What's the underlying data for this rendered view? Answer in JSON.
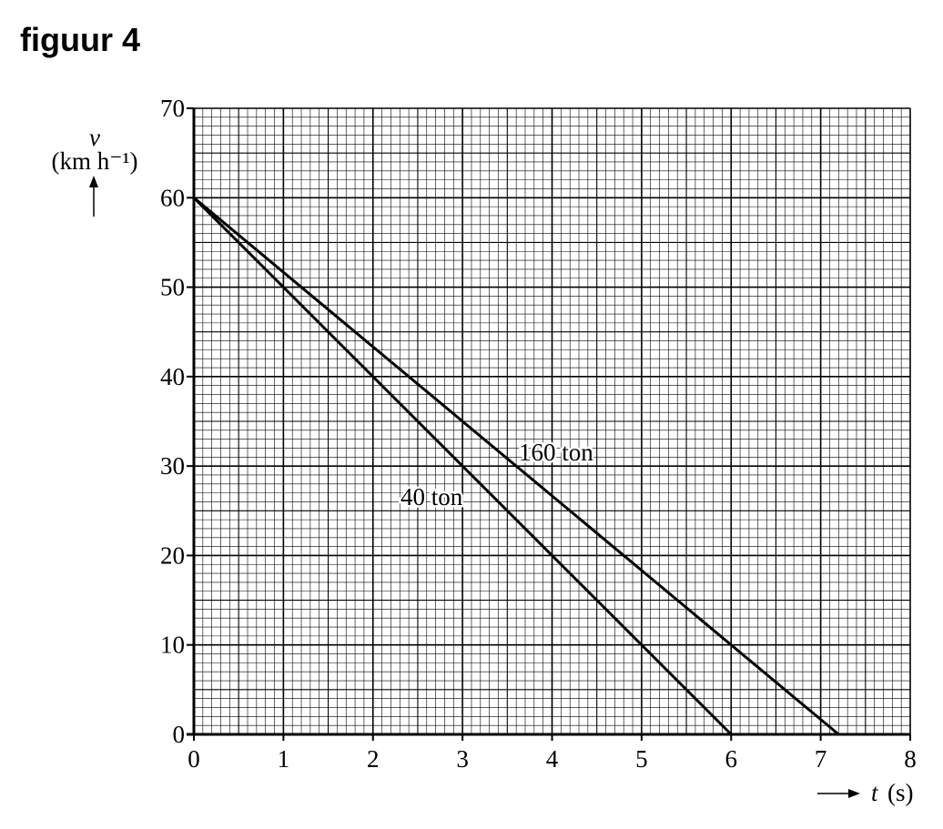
{
  "chart_data": {
    "type": "line",
    "title": "figuur 4",
    "x_label": "t",
    "x_unit": "(s)",
    "y_label": "v",
    "y_unit": "(km h⁻¹)",
    "series": [
      {
        "name": "40 ton",
        "color": "#000000",
        "x": [
          0,
          6
        ],
        "values": [
          60,
          0
        ]
      },
      {
        "name": "160 ton",
        "color": "#000000",
        "x": [
          0,
          7.2
        ],
        "values": [
          60,
          0
        ]
      }
    ],
    "xlim": [
      0,
      8
    ],
    "xticks": [
      0,
      1,
      2,
      3,
      4,
      5,
      6,
      7,
      8
    ],
    "ylim": [
      0,
      70
    ],
    "yticks": [
      0,
      10,
      20,
      30,
      40,
      50,
      60,
      70
    ],
    "grid": true
  }
}
